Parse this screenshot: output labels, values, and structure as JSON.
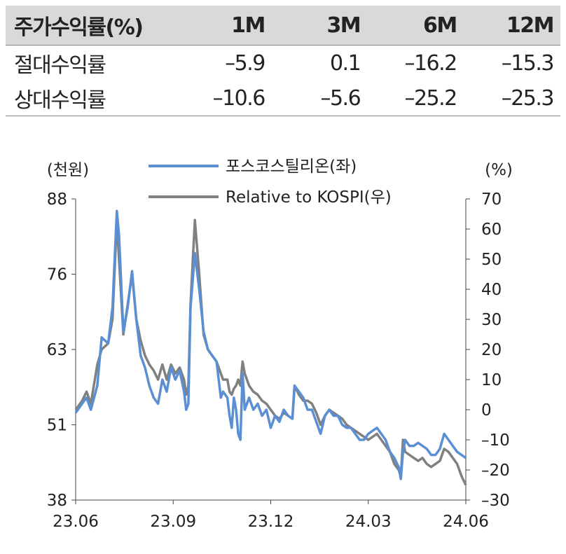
{
  "table": {
    "headers": [
      "주가수익률(%)",
      "1M",
      "3M",
      "6M",
      "12M"
    ],
    "rows": [
      {
        "label": "절대수익률",
        "values": [
          "–5.9",
          "0.1",
          "–16.2",
          "–15.3"
        ]
      },
      {
        "label": "상대수익률",
        "values": [
          "–10.6",
          "–5.6",
          "–25.2",
          "–25.3"
        ]
      }
    ]
  },
  "chart_data": {
    "type": "line",
    "ylabel_left": "(천원)",
    "ylabel_right": "(%)",
    "x_ticks": [
      "23.06",
      "23.09",
      "23.12",
      "24.03",
      "24.06"
    ],
    "y_left": {
      "ticks": [
        "88",
        "76",
        "63",
        "51",
        "38"
      ],
      "range": [
        38,
        88
      ]
    },
    "y_right": {
      "ticks": [
        "70",
        "60",
        "50",
        "40",
        "30",
        "20",
        "10",
        "0",
        "–10",
        "–20",
        "–30"
      ],
      "range": [
        -30,
        70
      ]
    },
    "series": [
      {
        "name": "포스코스틸리온(좌)",
        "axis": "left",
        "color": "#5b8fd4",
        "points": [
          [
            0,
            52.5
          ],
          [
            3,
            54
          ],
          [
            5,
            55
          ],
          [
            7,
            53
          ],
          [
            10,
            57
          ],
          [
            12,
            65
          ],
          [
            15,
            64
          ],
          [
            17,
            70
          ],
          [
            19,
            86
          ],
          [
            20,
            82
          ],
          [
            22,
            66
          ],
          [
            24,
            70
          ],
          [
            26,
            76
          ],
          [
            28,
            68
          ],
          [
            30,
            62
          ],
          [
            32,
            60
          ],
          [
            34,
            57
          ],
          [
            36,
            55
          ],
          [
            38,
            54
          ],
          [
            40,
            58
          ],
          [
            42,
            56
          ],
          [
            44,
            60
          ],
          [
            46,
            58
          ],
          [
            48,
            59.5
          ],
          [
            50,
            56
          ],
          [
            51,
            53
          ],
          [
            52,
            54
          ],
          [
            53,
            70
          ],
          [
            55,
            79
          ],
          [
            57,
            73
          ],
          [
            59,
            66
          ],
          [
            61,
            63
          ],
          [
            63,
            62
          ],
          [
            65,
            61
          ],
          [
            66,
            58
          ],
          [
            67,
            55
          ],
          [
            68,
            56
          ],
          [
            70,
            55
          ],
          [
            71,
            52
          ],
          [
            72,
            50
          ],
          [
            73,
            55
          ],
          [
            74,
            53
          ],
          [
            75,
            49
          ],
          [
            76,
            48
          ],
          [
            77,
            59
          ],
          [
            78,
            53
          ],
          [
            80,
            55
          ],
          [
            82,
            53
          ],
          [
            84,
            54
          ],
          [
            86,
            52
          ],
          [
            88,
            53
          ],
          [
            90,
            50
          ],
          [
            92,
            52
          ],
          [
            94,
            51
          ],
          [
            96,
            53
          ],
          [
            98,
            52
          ],
          [
            100,
            51.5
          ],
          [
            101,
            57
          ],
          [
            103,
            56
          ],
          [
            105,
            55
          ],
          [
            107,
            53
          ],
          [
            109,
            53
          ],
          [
            111,
            51
          ],
          [
            113,
            49
          ],
          [
            115,
            52
          ],
          [
            117,
            53
          ],
          [
            119,
            52
          ],
          [
            121,
            52
          ],
          [
            123,
            50.5
          ],
          [
            125,
            50
          ],
          [
            127,
            50
          ],
          [
            129,
            49
          ],
          [
            131,
            48
          ],
          [
            133,
            48
          ],
          [
            135,
            49
          ],
          [
            137,
            49.5
          ],
          [
            139,
            50
          ],
          [
            141,
            49
          ],
          [
            143,
            48
          ],
          [
            145,
            46
          ],
          [
            147,
            45
          ],
          [
            149,
            43.5
          ],
          [
            150,
            41.5
          ],
          [
            151,
            46
          ],
          [
            152,
            48
          ],
          [
            154,
            47
          ],
          [
            156,
            47
          ],
          [
            158,
            47.5
          ],
          [
            160,
            47
          ],
          [
            162,
            46.5
          ],
          [
            164,
            45.5
          ],
          [
            166,
            45.5
          ],
          [
            168,
            46.5
          ],
          [
            170,
            49
          ],
          [
            172,
            48
          ],
          [
            174,
            47
          ],
          [
            176,
            46
          ],
          [
            178,
            45.5
          ],
          [
            180,
            45
          ]
        ]
      },
      {
        "name": "Relative to KOSPI(우)",
        "axis": "right",
        "color": "#808080",
        "points": [
          [
            0,
            0
          ],
          [
            3,
            3
          ],
          [
            5,
            6
          ],
          [
            7,
            2
          ],
          [
            10,
            15
          ],
          [
            12,
            20
          ],
          [
            15,
            22
          ],
          [
            17,
            30
          ],
          [
            19,
            63
          ],
          [
            20,
            50
          ],
          [
            22,
            25
          ],
          [
            24,
            35
          ],
          [
            26,
            45
          ],
          [
            28,
            30
          ],
          [
            30,
            23
          ],
          [
            32,
            18
          ],
          [
            34,
            15
          ],
          [
            36,
            13
          ],
          [
            38,
            10
          ],
          [
            40,
            15
          ],
          [
            42,
            10
          ],
          [
            44,
            15
          ],
          [
            46,
            12
          ],
          [
            48,
            14
          ],
          [
            50,
            10
          ],
          [
            51,
            5
          ],
          [
            52,
            8
          ],
          [
            53,
            35
          ],
          [
            55,
            63
          ],
          [
            57,
            45
          ],
          [
            59,
            25
          ],
          [
            61,
            20
          ],
          [
            63,
            18
          ],
          [
            65,
            16
          ],
          [
            66,
            14
          ],
          [
            67,
            12
          ],
          [
            68,
            10
          ],
          [
            70,
            10
          ],
          [
            71,
            6
          ],
          [
            72,
            5
          ],
          [
            73,
            7
          ],
          [
            74,
            8
          ],
          [
            75,
            10
          ],
          [
            76,
            8
          ],
          [
            77,
            16
          ],
          [
            78,
            12
          ],
          [
            80,
            8
          ],
          [
            82,
            6
          ],
          [
            84,
            5
          ],
          [
            86,
            3
          ],
          [
            88,
            2
          ],
          [
            90,
            0
          ],
          [
            92,
            -2
          ],
          [
            94,
            -3
          ],
          [
            96,
            -1
          ],
          [
            98,
            -2
          ],
          [
            100,
            -3
          ],
          [
            101,
            8
          ],
          [
            103,
            5
          ],
          [
            105,
            3
          ],
          [
            107,
            3
          ],
          [
            109,
            2
          ],
          [
            111,
            -1
          ],
          [
            113,
            -5
          ],
          [
            115,
            -2
          ],
          [
            117,
            0
          ],
          [
            119,
            -1
          ],
          [
            121,
            -2
          ],
          [
            123,
            -3
          ],
          [
            125,
            -5
          ],
          [
            127,
            -6
          ],
          [
            129,
            -7
          ],
          [
            131,
            -8
          ],
          [
            133,
            -9
          ],
          [
            135,
            -10
          ],
          [
            137,
            -9
          ],
          [
            139,
            -8
          ],
          [
            141,
            -10
          ],
          [
            143,
            -12
          ],
          [
            145,
            -14
          ],
          [
            147,
            -18
          ],
          [
            149,
            -20
          ],
          [
            150,
            -22
          ],
          [
            151,
            -10
          ],
          [
            152,
            -14
          ],
          [
            154,
            -15
          ],
          [
            156,
            -16
          ],
          [
            158,
            -17
          ],
          [
            160,
            -16
          ],
          [
            162,
            -18
          ],
          [
            164,
            -19
          ],
          [
            166,
            -18
          ],
          [
            168,
            -17
          ],
          [
            170,
            -13
          ],
          [
            172,
            -14
          ],
          [
            174,
            -16
          ],
          [
            176,
            -18
          ],
          [
            178,
            -22
          ],
          [
            180,
            -25
          ]
        ]
      }
    ]
  }
}
